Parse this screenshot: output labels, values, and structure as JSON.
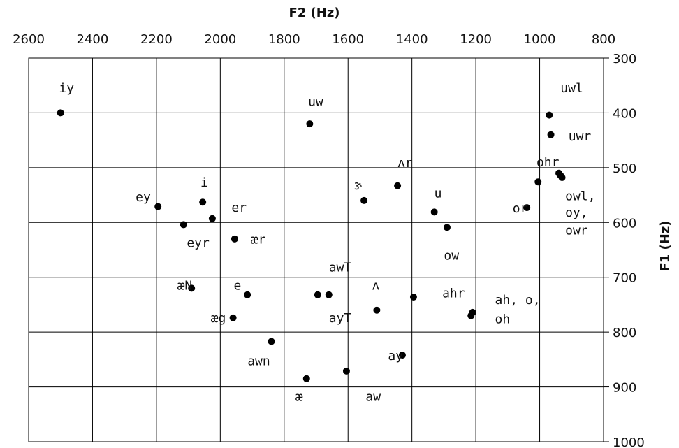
{
  "chart_data": {
    "type": "scatter",
    "xlabel": "F2 (Hz)",
    "ylabel": "F1 (Hz)",
    "xlim": [
      2600,
      800
    ],
    "ylim": [
      300,
      1000
    ],
    "x_reversed": true,
    "y_reversed": true,
    "x_ticks": [
      2600,
      2400,
      2200,
      2000,
      1800,
      1600,
      1400,
      1200,
      1000,
      800
    ],
    "y_ticks": [
      300,
      400,
      500,
      600,
      700,
      800,
      900,
      1000
    ],
    "grid": true,
    "points": [
      {
        "x": 2500,
        "y": 400
      },
      {
        "x": 1720,
        "y": 420
      },
      {
        "x": 970,
        "y": 404
      },
      {
        "x": 965,
        "y": 440
      },
      {
        "x": 940,
        "y": 510
      },
      {
        "x": 935,
        "y": 514
      },
      {
        "x": 930,
        "y": 518
      },
      {
        "x": 1005,
        "y": 526
      },
      {
        "x": 1040,
        "y": 573
      },
      {
        "x": 1445,
        "y": 533
      },
      {
        "x": 1550,
        "y": 560
      },
      {
        "x": 1330,
        "y": 581
      },
      {
        "x": 1290,
        "y": 609
      },
      {
        "x": 2195,
        "y": 571
      },
      {
        "x": 2055,
        "y": 563
      },
      {
        "x": 2025,
        "y": 593
      },
      {
        "x": 2115,
        "y": 604
      },
      {
        "x": 1955,
        "y": 630
      },
      {
        "x": 2090,
        "y": 720
      },
      {
        "x": 1915,
        "y": 732
      },
      {
        "x": 1960,
        "y": 774
      },
      {
        "x": 1695,
        "y": 732
      },
      {
        "x": 1660,
        "y": 732
      },
      {
        "x": 1510,
        "y": 760
      },
      {
        "x": 1395,
        "y": 736
      },
      {
        "x": 1210,
        "y": 764
      },
      {
        "x": 1215,
        "y": 770
      },
      {
        "x": 1840,
        "y": 817
      },
      {
        "x": 1430,
        "y": 842
      },
      {
        "x": 1605,
        "y": 871
      },
      {
        "x": 1730,
        "y": 885
      }
    ],
    "labels": [
      {
        "text": "iy",
        "x": 2505,
        "y": 355
      },
      {
        "text": "uw",
        "x": 1725,
        "y": 380
      },
      {
        "text": "uwl",
        "x": 935,
        "y": 355
      },
      {
        "text": "uwr",
        "x": 910,
        "y": 443
      },
      {
        "text": "ohr",
        "x": 1010,
        "y": 490
      },
      {
        "text": "owl,",
        "x": 920,
        "y": 552
      },
      {
        "text": "oy,",
        "x": 920,
        "y": 582
      },
      {
        "text": "owr",
        "x": 920,
        "y": 614
      },
      {
        "text": "or",
        "x": 1085,
        "y": 574
      },
      {
        "text": "ʌr",
        "x": 1445,
        "y": 491
      },
      {
        "text": "ɝ",
        "x": 1580,
        "y": 532
      },
      {
        "text": "u",
        "x": 1330,
        "y": 547
      },
      {
        "text": "ow",
        "x": 1300,
        "y": 660
      },
      {
        "text": "ey",
        "x": 2265,
        "y": 554
      },
      {
        "text": "i",
        "x": 2062,
        "y": 527
      },
      {
        "text": "er",
        "x": 1965,
        "y": 573
      },
      {
        "text": "eyr",
        "x": 2105,
        "y": 637
      },
      {
        "text": "ær",
        "x": 1905,
        "y": 631
      },
      {
        "text": "awT",
        "x": 1660,
        "y": 682
      },
      {
        "text": "æN",
        "x": 2135,
        "y": 715
      },
      {
        "text": "e",
        "x": 1958,
        "y": 715
      },
      {
        "text": "æg",
        "x": 2030,
        "y": 774
      },
      {
        "text": "ayT",
        "x": 1660,
        "y": 774
      },
      {
        "text": "ʌ",
        "x": 1525,
        "y": 715
      },
      {
        "text": "ahr",
        "x": 1305,
        "y": 729
      },
      {
        "text": "ah, o,",
        "x": 1140,
        "y": 741
      },
      {
        "text": "oh",
        "x": 1140,
        "y": 776
      },
      {
        "text": "awn",
        "x": 1915,
        "y": 853
      },
      {
        "text": "ay",
        "x": 1475,
        "y": 843
      },
      {
        "text": "æ",
        "x": 1765,
        "y": 918
      },
      {
        "text": "aw",
        "x": 1545,
        "y": 918
      }
    ]
  }
}
